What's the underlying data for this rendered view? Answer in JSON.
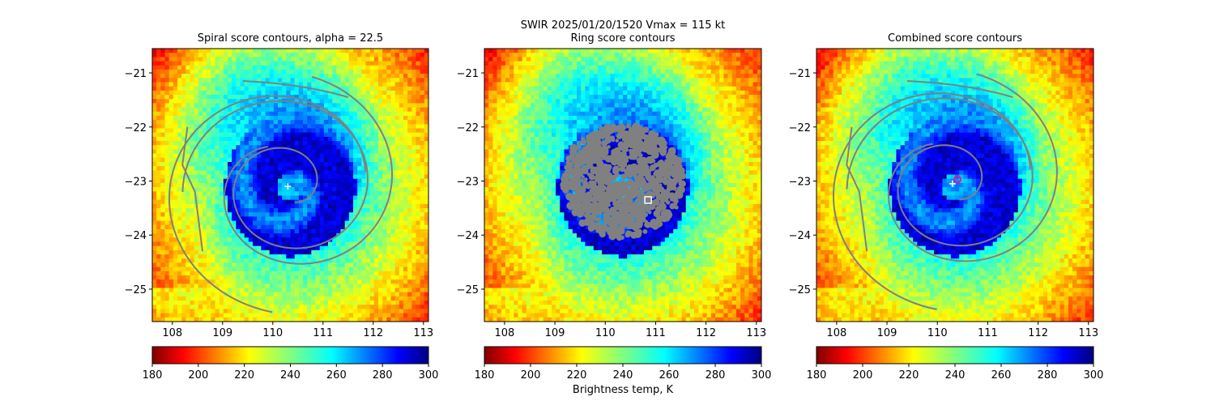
{
  "figure": {
    "suptitle_line1": "SWIR  2025/01/20/1520    Vmax = 115 kt",
    "colorbar_label": "Brightness temp, K"
  },
  "colors": {
    "contour": "#808080",
    "center_marker": "#ffffff",
    "combined_marker": "#e0169a"
  },
  "chart_data": [
    {
      "type": "heatmap",
      "title": "Spiral score contours, alpha = 22.5",
      "xlim": [
        107.6,
        113.1
      ],
      "ylim": [
        -25.6,
        -20.55
      ],
      "xticks": [
        108,
        109,
        110,
        111,
        112,
        113
      ],
      "yticks": [
        -21,
        -22,
        -23,
        -24,
        -25
      ],
      "colormap": "jet",
      "clim": [
        180,
        300
      ],
      "colorbar_ticks": [
        180,
        200,
        220,
        240,
        260,
        280,
        300
      ],
      "eye_center": [
        110.3,
        -23.1
      ],
      "contours": "spiral",
      "marker": "plus"
    },
    {
      "type": "heatmap",
      "title": "Ring score contours",
      "xlim": [
        107.6,
        113.1
      ],
      "ylim": [
        -25.6,
        -20.55
      ],
      "xticks": [
        108,
        109,
        110,
        111,
        112,
        113
      ],
      "yticks": [
        -21,
        -22,
        -23,
        -24,
        -25
      ],
      "colormap": "jet",
      "clim": [
        180,
        300
      ],
      "colorbar_ticks": [
        180,
        200,
        220,
        240,
        260,
        280,
        300
      ],
      "eye_center": [
        110.3,
        -23.1
      ],
      "ring_center": [
        110.85,
        -23.35
      ],
      "contours": "ring",
      "marker": "square"
    },
    {
      "type": "heatmap",
      "title": "Combined score contours",
      "xlim": [
        107.6,
        113.1
      ],
      "ylim": [
        -25.6,
        -20.55
      ],
      "xticks": [
        108,
        109,
        110,
        111,
        112,
        113
      ],
      "yticks": [
        -21,
        -22,
        -23,
        -24,
        -25
      ],
      "colormap": "jet",
      "clim": [
        180,
        300
      ],
      "colorbar_ticks": [
        180,
        200,
        220,
        240,
        260,
        280,
        300
      ],
      "eye_center": [
        110.3,
        -23.05
      ],
      "best_center": [
        110.4,
        -22.97
      ],
      "contours": "spiral",
      "marker": "plus-circle"
    }
  ]
}
